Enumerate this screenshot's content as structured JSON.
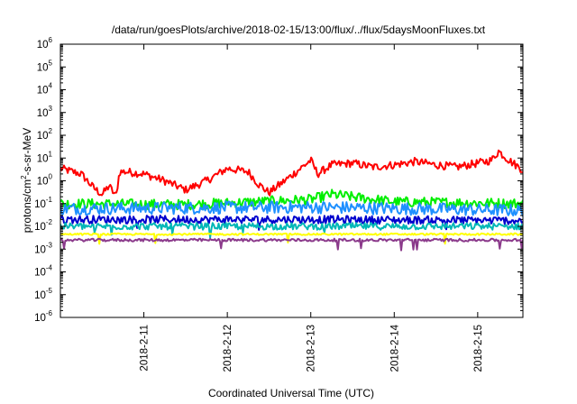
{
  "chart_data": {
    "type": "line",
    "title": "/data/run/goesPlots/archive/2018-02-15/13:00/flux/../flux/5daysMoonFluxes.txt",
    "xlabel": "Coordinated Universal Time (UTC)",
    "ylabel": "protons/cm2-s-sr-MeV",
    "ylabel_parts": {
      "pre": "protons/cm",
      "sup": "2",
      "post": "-s-sr-MeV"
    },
    "yscale": "log",
    "ylim_exp": [
      -6,
      6
    ],
    "y_ticks": [
      {
        "base": "10",
        "exp": "-6"
      },
      {
        "base": "10",
        "exp": "-5"
      },
      {
        "base": "10",
        "exp": "-4"
      },
      {
        "base": "10",
        "exp": "-3"
      },
      {
        "base": "10",
        "exp": "-2"
      },
      {
        "base": "10",
        "exp": "-1"
      },
      {
        "base": "10",
        "exp": "0"
      },
      {
        "base": "10",
        "exp": "1"
      },
      {
        "base": "10",
        "exp": "2"
      },
      {
        "base": "10",
        "exp": "3"
      },
      {
        "base": "10",
        "exp": "4"
      },
      {
        "base": "10",
        "exp": "5"
      },
      {
        "base": "10",
        "exp": "6"
      }
    ],
    "xlim": [
      "2018-02-10 00:00",
      "2018-02-15 13:00"
    ],
    "x_ticks": [
      "2018-2-11",
      "2018-2-12",
      "2018-2-13",
      "2018-2-14",
      "2018-2-15"
    ],
    "grid": false,
    "legend": "none",
    "series": [
      {
        "color": "#ff0000",
        "x": [
          "2018-02-10 00:00",
          "2018-02-10 06:00",
          "2018-02-10 09:30",
          "2018-02-10 12:00",
          "2018-02-10 14:00",
          "2018-02-10 16:00",
          "2018-02-10 17:00",
          "2018-02-10 19:00",
          "2018-02-11 00:00",
          "2018-02-11 06:00",
          "2018-02-11 12:00",
          "2018-02-11 18:00",
          "2018-02-12 00:00",
          "2018-02-12 06:00",
          "2018-02-12 09:00",
          "2018-02-12 12:00",
          "2018-02-12 18:00",
          "2018-02-13 00:00",
          "2018-02-13 02:00",
          "2018-02-13 06:00",
          "2018-02-13 12:00",
          "2018-02-13 18:00",
          "2018-02-14 00:00",
          "2018-02-14 06:00",
          "2018-02-14 12:00",
          "2018-02-14 18:00",
          "2018-02-15 00:00",
          "2018-02-15 04:00",
          "2018-02-15 06:00",
          "2018-02-15 09:00",
          "2018-02-15 13:00"
        ],
        "y": [
          3.5,
          2.0,
          0.5,
          0.25,
          0.6,
          0.2,
          2.5,
          2.5,
          2.0,
          1.0,
          0.4,
          1.0,
          3.5,
          2.5,
          0.7,
          0.3,
          1.5,
          8.0,
          2.0,
          5.0,
          6.0,
          4.0,
          5.0,
          7.0,
          5.0,
          4.0,
          6.0,
          8.0,
          20.0,
          8.0,
          3.0
        ],
        "noise": 0.35
      },
      {
        "color": "#00ee00",
        "x": [
          "2018-02-10 00:00",
          "2018-02-11 12:00",
          "2018-02-13 00:00",
          "2018-02-13 06:00",
          "2018-02-14 00:00",
          "2018-02-15 13:00"
        ],
        "y": [
          0.1,
          0.09,
          0.15,
          0.25,
          0.12,
          0.1
        ],
        "noise": 0.45
      },
      {
        "color": "#1e90ff",
        "x": [
          "2018-02-10 00:00",
          "2018-02-13 00:00",
          "2018-02-15 13:00"
        ],
        "y": [
          0.06,
          0.07,
          0.05
        ],
        "noise": 0.55
      },
      {
        "color": "#0000cd",
        "x": [
          "2018-02-10 00:00",
          "2018-02-13 00:00",
          "2018-02-15 13:00"
        ],
        "y": [
          0.02,
          0.02,
          0.018
        ],
        "noise": 0.35
      },
      {
        "color": "#00b7b7",
        "x": [
          "2018-02-10 00:00",
          "2018-02-15 13:00"
        ],
        "y": [
          0.01,
          0.01
        ],
        "noise": 0.3
      },
      {
        "color": "#ffff00",
        "x": [
          "2018-02-10 00:00",
          "2018-02-15 13:00"
        ],
        "y": [
          0.0045,
          0.0045
        ],
        "noise": 0.08
      },
      {
        "color": "#8b3a8b",
        "x": [
          "2018-02-10 00:00",
          "2018-02-15 13:00"
        ],
        "y": [
          0.0025,
          0.0025
        ],
        "noise": 0.12
      }
    ]
  }
}
